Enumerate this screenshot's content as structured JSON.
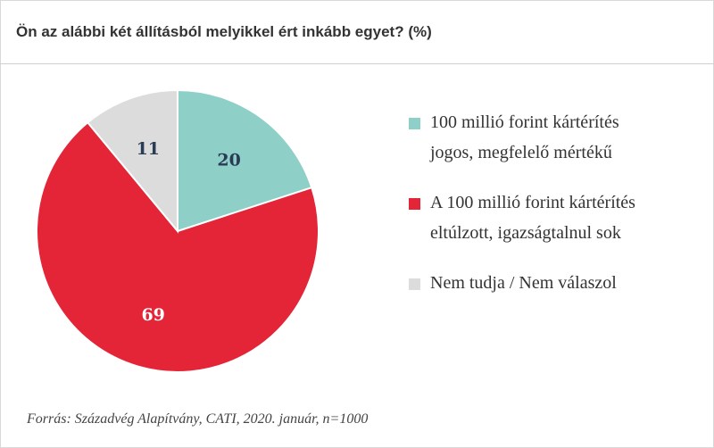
{
  "title": "Ön az alábbi két állításból melyikkel ért inkább egyet? (%)",
  "source": "Forrás: Századvég Alapítvány, CATI, 2020. január, n=1000",
  "chart_data": {
    "type": "pie",
    "title": "Ön az alábbi két állításból melyikkel ért inkább egyet? (%)",
    "slices": [
      {
        "label_lines": [
          "100 millió forint kártérítés",
          "jogos, megfelelő mértékű"
        ],
        "value": 20,
        "value_label": "20",
        "color": "#8ecfc7",
        "label_color": "#2a3b55"
      },
      {
        "label_lines": [
          "A 100 millió forint kártérítés",
          "eltúlzott, igazságtalnul sok"
        ],
        "value": 69,
        "value_label": "69",
        "color": "#e42437",
        "label_color": "#ffffff"
      },
      {
        "label_lines": [
          "Nem tudja / Nem válaszol"
        ],
        "value": 11,
        "value_label": "11",
        "color": "#dcdcdc",
        "label_color": "#2a3b55"
      }
    ],
    "start_angle": "12 o'clock",
    "direction": "clockwise",
    "legend": "right"
  }
}
